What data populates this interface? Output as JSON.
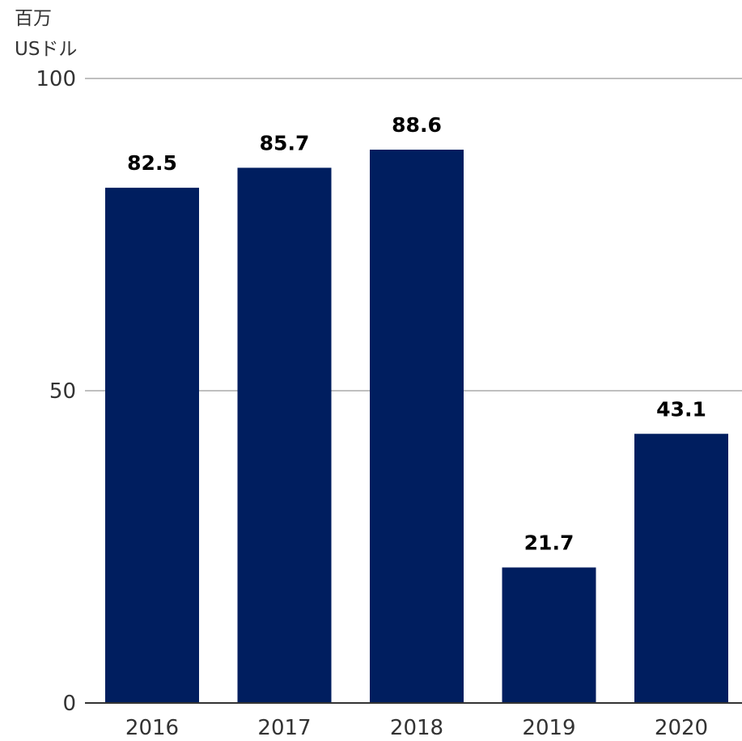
{
  "chart_data": {
    "type": "bar",
    "unit_label_line1": "百万",
    "unit_label_line2": "USドル",
    "categories": [
      "2016",
      "2017",
      "2018",
      "2019",
      "2020"
    ],
    "values": [
      82.5,
      85.7,
      88.6,
      21.7,
      43.1
    ],
    "value_labels": [
      "82.5",
      "85.7",
      "88.6",
      "21.7",
      "43.1"
    ],
    "ylim": [
      0,
      100
    ],
    "yticks": [
      0,
      50,
      100
    ],
    "ytick_labels": [
      "0",
      "50",
      "100"
    ],
    "grid": true,
    "bar_color": "#001e5f",
    "grid_color": "#aaaaaa",
    "axis_color": "#333333"
  }
}
